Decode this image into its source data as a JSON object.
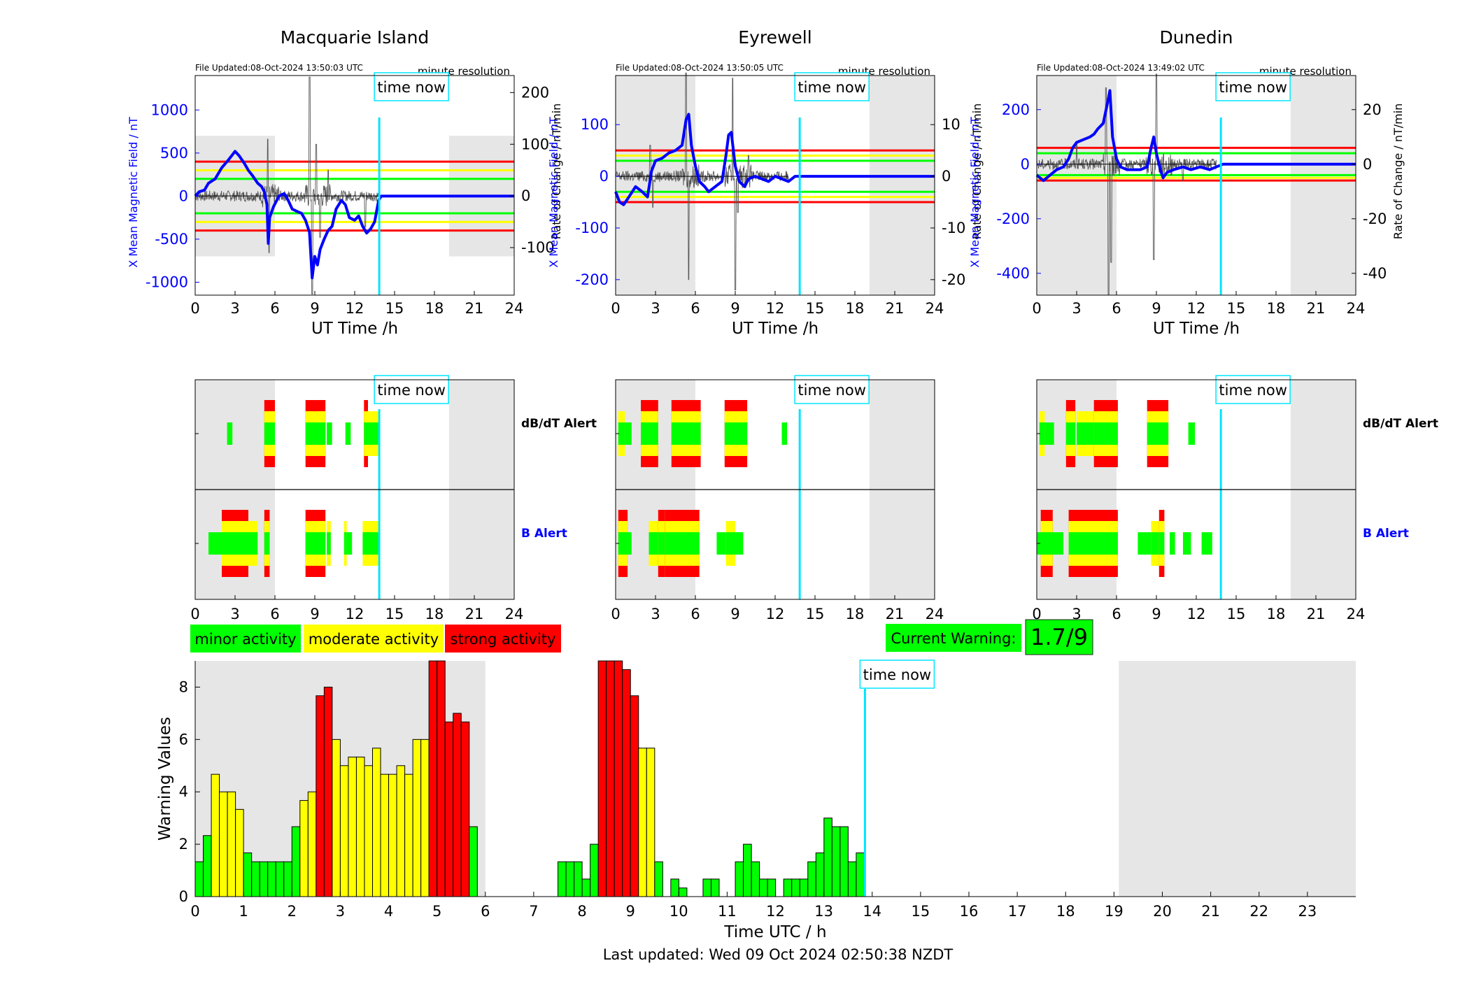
{
  "colors": {
    "minor": "#00ff00",
    "moderate": "#ffff00",
    "strong": "#ff0000",
    "night": "#e6e6e6",
    "field": "#0000ff",
    "roc": "#000000",
    "timenow": "#00e5ff"
  },
  "time_now_label": "time now",
  "time_now_h": 13.85,
  "top_axes": {
    "xlabel": "UT Time /h",
    "xticks": [
      0,
      3,
      6,
      9,
      12,
      15,
      18,
      21,
      24
    ],
    "xlim": [
      0,
      24
    ]
  },
  "stations": [
    {
      "name": "Macquarie Island",
      "file_updated": "File Updated:08-Oct-2024 13:50:03 UTC",
      "resolution": "minute resolution",
      "ylabel_left": "X Mean Magnetic Field / nT",
      "ylabel_right": "Rate of Change / nT/min",
      "ylim": [
        -1150,
        1400
      ],
      "yticks": [
        -1000,
        -500,
        0,
        500,
        1000
      ],
      "rlim": [
        -192,
        233
      ],
      "rticks": [
        -100,
        0,
        100,
        200
      ],
      "night": [
        [
          0,
          6
        ],
        [
          19.1,
          24
        ]
      ],
      "night_ylim": [
        -700,
        700
      ],
      "thresholds": [
        {
          "v": 400,
          "c": "strong"
        },
        {
          "v": 300,
          "c": "moderate"
        },
        {
          "v": 200,
          "c": "minor"
        },
        {
          "v": -200,
          "c": "minor"
        },
        {
          "v": -300,
          "c": "moderate"
        },
        {
          "v": -400,
          "c": "strong"
        }
      ],
      "field_data": [
        [
          0,
          0
        ],
        [
          0.3,
          50
        ],
        [
          0.7,
          70
        ],
        [
          1.0,
          150
        ],
        [
          1.5,
          200
        ],
        [
          2.0,
          330
        ],
        [
          2.5,
          420
        ],
        [
          2.8,
          480
        ],
        [
          3.0,
          520
        ],
        [
          3.3,
          470
        ],
        [
          3.7,
          380
        ],
        [
          4.0,
          300
        ],
        [
          4.3,
          240
        ],
        [
          4.7,
          150
        ],
        [
          5.0,
          110
        ],
        [
          5.2,
          50
        ],
        [
          5.4,
          -100
        ],
        [
          5.5,
          -550
        ],
        [
          5.6,
          -250
        ],
        [
          5.9,
          -120
        ],
        [
          6.3,
          0
        ],
        [
          6.7,
          30
        ],
        [
          7.0,
          -50
        ],
        [
          7.3,
          -150
        ],
        [
          7.7,
          -180
        ],
        [
          8.0,
          -200
        ],
        [
          8.3,
          -280
        ],
        [
          8.6,
          -420
        ],
        [
          8.8,
          -950
        ],
        [
          9.0,
          -700
        ],
        [
          9.2,
          -800
        ],
        [
          9.4,
          -620
        ],
        [
          9.7,
          -500
        ],
        [
          10.0,
          -400
        ],
        [
          10.3,
          -350
        ],
        [
          10.6,
          -150
        ],
        [
          11.0,
          -50
        ],
        [
          11.3,
          -100
        ],
        [
          11.6,
          -250
        ],
        [
          12.0,
          -280
        ],
        [
          12.3,
          -230
        ],
        [
          12.6,
          -350
        ],
        [
          12.9,
          -430
        ],
        [
          13.2,
          -380
        ],
        [
          13.5,
          -300
        ],
        [
          13.8,
          -50
        ],
        [
          14.0,
          0
        ],
        [
          24,
          0
        ]
      ],
      "roc_x0": 0,
      "roc_x1": 13.85,
      "roc_spikes": [
        [
          5.45,
          110
        ],
        [
          5.55,
          -110
        ],
        [
          8.6,
          230
        ],
        [
          8.8,
          -190
        ],
        [
          9.1,
          100
        ],
        [
          9.4,
          -80
        ],
        [
          10.0,
          50
        ],
        [
          12.8,
          -60
        ]
      ],
      "alert_db": [
        {
          "t0": 2.4,
          "t1": 2.8,
          "lvl": 1
        },
        {
          "t0": 5.2,
          "t1": 6.0,
          "lvl": 3
        },
        {
          "t0": 8.3,
          "t1": 9.8,
          "lvl": 3
        },
        {
          "t0": 9.9,
          "t1": 10.3,
          "lvl": 1
        },
        {
          "t0": 11.3,
          "t1": 11.7,
          "lvl": 1
        },
        {
          "t0": 12.7,
          "t1": 13.0,
          "lvl": 3
        },
        {
          "t0": 13.0,
          "t1": 13.85,
          "lvl": 2
        }
      ],
      "alert_b": [
        {
          "t0": 1.0,
          "t1": 2.0,
          "lvl": 1
        },
        {
          "t0": 2.0,
          "t1": 4.0,
          "lvl": 3
        },
        {
          "t0": 4.0,
          "t1": 4.7,
          "lvl": 2
        },
        {
          "t0": 5.2,
          "t1": 5.6,
          "lvl": 3
        },
        {
          "t0": 8.3,
          "t1": 9.8,
          "lvl": 3
        },
        {
          "t0": 9.9,
          "t1": 10.2,
          "lvl": 2
        },
        {
          "t0": 11.2,
          "t1": 11.4,
          "lvl": 2
        },
        {
          "t0": 11.4,
          "t1": 11.8,
          "lvl": 1
        },
        {
          "t0": 12.6,
          "t1": 13.85,
          "lvl": 2
        }
      ]
    },
    {
      "name": "Eyrewell",
      "file_updated": "File Updated:08-Oct-2024 13:50:05 UTC",
      "resolution": "minute resolution",
      "ylabel_left": "X Mean Magnetic Field / nT",
      "ylabel_right": "Rate of Change / nT/min",
      "ylim": [
        -230,
        195
      ],
      "yticks": [
        -200,
        -100,
        0,
        100
      ],
      "rlim": [
        -23,
        19.5
      ],
      "rticks": [
        -20,
        -10,
        0,
        10
      ],
      "night": [
        [
          0,
          6
        ],
        [
          19.1,
          24
        ]
      ],
      "night_ylim": [
        -230,
        195
      ],
      "thresholds": [
        {
          "v": 50,
          "c": "strong"
        },
        {
          "v": 40,
          "c": "moderate"
        },
        {
          "v": 30,
          "c": "minor"
        },
        {
          "v": -30,
          "c": "minor"
        },
        {
          "v": -40,
          "c": "moderate"
        },
        {
          "v": -50,
          "c": "strong"
        }
      ],
      "field_data": [
        [
          0,
          -30
        ],
        [
          0.3,
          -50
        ],
        [
          0.6,
          -55
        ],
        [
          1.0,
          -40
        ],
        [
          1.5,
          -20
        ],
        [
          2.0,
          -30
        ],
        [
          2.4,
          -40
        ],
        [
          2.7,
          10
        ],
        [
          3.0,
          30
        ],
        [
          3.5,
          35
        ],
        [
          4.0,
          45
        ],
        [
          4.5,
          50
        ],
        [
          5.0,
          60
        ],
        [
          5.3,
          110
        ],
        [
          5.5,
          120
        ],
        [
          5.7,
          60
        ],
        [
          6.0,
          20
        ],
        [
          6.3,
          -10
        ],
        [
          6.7,
          -20
        ],
        [
          7.0,
          -30
        ],
        [
          7.5,
          -20
        ],
        [
          8.0,
          -10
        ],
        [
          8.3,
          40
        ],
        [
          8.5,
          80
        ],
        [
          8.7,
          85
        ],
        [
          9.0,
          20
        ],
        [
          9.3,
          -10
        ],
        [
          9.7,
          -20
        ],
        [
          10.0,
          -5
        ],
        [
          10.5,
          0
        ],
        [
          11.0,
          -5
        ],
        [
          11.5,
          -10
        ],
        [
          12.0,
          0
        ],
        [
          12.5,
          -5
        ],
        [
          13.0,
          -10
        ],
        [
          13.5,
          0
        ],
        [
          24,
          0
        ]
      ],
      "roc_x0": 0,
      "roc_x1": 13.0,
      "roc_spikes": [
        [
          5.3,
          20
        ],
        [
          5.5,
          -20
        ],
        [
          8.8,
          19
        ],
        [
          9.0,
          -22
        ],
        [
          2.6,
          6
        ],
        [
          2.8,
          -6
        ],
        [
          9.2,
          -7
        ],
        [
          10.0,
          4
        ]
      ],
      "alert_db": [
        {
          "t0": 0.2,
          "t1": 0.7,
          "lvl": 2
        },
        {
          "t0": 0.7,
          "t1": 1.2,
          "lvl": 1
        },
        {
          "t0": 1.9,
          "t1": 3.2,
          "lvl": 3
        },
        {
          "t0": 4.2,
          "t1": 4.5,
          "lvl": 3
        },
        {
          "t0": 4.5,
          "t1": 6.4,
          "lvl": 3
        },
        {
          "t0": 8.2,
          "t1": 9.9,
          "lvl": 3
        },
        {
          "t0": 12.5,
          "t1": 12.9,
          "lvl": 1
        }
      ],
      "alert_b": [
        {
          "t0": 0.2,
          "t1": 0.9,
          "lvl": 3
        },
        {
          "t0": 0.9,
          "t1": 1.2,
          "lvl": 1
        },
        {
          "t0": 2.5,
          "t1": 3.2,
          "lvl": 2
        },
        {
          "t0": 3.2,
          "t1": 3.7,
          "lvl": 3
        },
        {
          "t0": 3.7,
          "t1": 6.3,
          "lvl": 3
        },
        {
          "t0": 7.6,
          "t1": 8.3,
          "lvl": 1
        },
        {
          "t0": 8.3,
          "t1": 9.0,
          "lvl": 2
        },
        {
          "t0": 9.0,
          "t1": 9.6,
          "lvl": 1
        }
      ]
    },
    {
      "name": "Dunedin",
      "file_updated": "File Updated:08-Oct-2024 13:49:02 UTC",
      "resolution": "minute resolution",
      "ylabel_left": "X Mean Magnetic Field / nT",
      "ylabel_right": "Rate of Change / nT/min",
      "ylim": [
        -480,
        325
      ],
      "yticks": [
        -400,
        -200,
        0,
        200
      ],
      "rlim": [
        -48,
        32.5
      ],
      "rticks": [
        -40,
        -20,
        0,
        20
      ],
      "night": [
        [
          0,
          6
        ],
        [
          19.1,
          24
        ]
      ],
      "night_ylim": [
        -480,
        325
      ],
      "thresholds": [
        {
          "v": 60,
          "c": "strong"
        },
        {
          "v": 40,
          "c": "minor"
        },
        {
          "v": -40,
          "c": "minor"
        },
        {
          "v": -50,
          "c": "moderate"
        },
        {
          "v": -60,
          "c": "strong"
        }
      ],
      "field_data": [
        [
          0,
          -40
        ],
        [
          0.5,
          -60
        ],
        [
          1.0,
          -40
        ],
        [
          1.5,
          -20
        ],
        [
          2.0,
          -10
        ],
        [
          2.4,
          20
        ],
        [
          2.7,
          60
        ],
        [
          3.0,
          80
        ],
        [
          3.5,
          90
        ],
        [
          4.0,
          100
        ],
        [
          4.3,
          110
        ],
        [
          4.6,
          130
        ],
        [
          5.0,
          150
        ],
        [
          5.3,
          220
        ],
        [
          5.5,
          270
        ],
        [
          5.7,
          100
        ],
        [
          6.0,
          20
        ],
        [
          6.3,
          -10
        ],
        [
          6.8,
          -20
        ],
        [
          7.3,
          -20
        ],
        [
          7.8,
          -20
        ],
        [
          8.3,
          -10
        ],
        [
          8.6,
          60
        ],
        [
          8.8,
          100
        ],
        [
          9.0,
          40
        ],
        [
          9.3,
          -20
        ],
        [
          9.5,
          -50
        ],
        [
          9.8,
          -30
        ],
        [
          10.3,
          -20
        ],
        [
          11.0,
          -10
        ],
        [
          11.6,
          -20
        ],
        [
          12.3,
          -10
        ],
        [
          13.0,
          -20
        ],
        [
          13.5,
          -10
        ],
        [
          14.0,
          0
        ],
        [
          24,
          0
        ]
      ],
      "roc_x0": 0,
      "roc_x1": 13.5,
      "roc_spikes": [
        [
          5.2,
          28
        ],
        [
          5.4,
          -48
        ],
        [
          5.6,
          -36
        ],
        [
          9.0,
          33
        ],
        [
          8.8,
          -35
        ],
        [
          3.0,
          8
        ],
        [
          11.0,
          -6
        ]
      ],
      "alert_db": [
        {
          "t0": 0.2,
          "t1": 0.6,
          "lvl": 2
        },
        {
          "t0": 0.6,
          "t1": 1.3,
          "lvl": 1
        },
        {
          "t0": 2.2,
          "t1": 2.9,
          "lvl": 3
        },
        {
          "t0": 3.0,
          "t1": 3.5,
          "lvl": 2
        },
        {
          "t0": 3.5,
          "t1": 4.3,
          "lvl": 2
        },
        {
          "t0": 4.3,
          "t1": 6.1,
          "lvl": 3
        },
        {
          "t0": 8.3,
          "t1": 9.9,
          "lvl": 3
        },
        {
          "t0": 11.4,
          "t1": 11.9,
          "lvl": 1
        }
      ],
      "alert_b": [
        {
          "t0": 0.3,
          "t1": 1.2,
          "lvl": 3
        },
        {
          "t0": 0,
          "t1": 2.0,
          "lvl": 1
        },
        {
          "t0": 2.4,
          "t1": 6.1,
          "lvl": 3
        },
        {
          "t0": 7.6,
          "t1": 8.6,
          "lvl": 1
        },
        {
          "t0": 8.6,
          "t1": 9.2,
          "lvl": 2
        },
        {
          "t0": 9.2,
          "t1": 9.6,
          "lvl": 3
        },
        {
          "t0": 10.0,
          "t1": 10.4,
          "lvl": 1
        },
        {
          "t0": 11.0,
          "t1": 11.6,
          "lvl": 1
        },
        {
          "t0": 12.4,
          "t1": 13.2,
          "lvl": 1
        }
      ]
    }
  ],
  "alert_labels": {
    "dbdt": "dB/dT Alert",
    "b": "B Alert"
  },
  "legend": {
    "minor": "minor activity",
    "moderate": "moderate activity",
    "strong": "strong activity"
  },
  "current_warning": {
    "label": "Current Warning:",
    "value": "1.7/9"
  },
  "chart_data": {
    "type": "bar",
    "xlabel": "Time UTC / h",
    "ylabel": "Warning Values",
    "xlim": [
      0,
      24
    ],
    "ylim": [
      0,
      9
    ],
    "xticks": [
      0,
      1,
      2,
      3,
      4,
      5,
      6,
      7,
      8,
      9,
      10,
      11,
      12,
      13,
      14,
      15,
      16,
      17,
      18,
      19,
      20,
      21,
      22,
      23
    ],
    "yticks": [
      0,
      2,
      4,
      6,
      8
    ],
    "bin_width_h": 0.1667,
    "night": [
      [
        0,
        6
      ],
      [
        19.1,
        24
      ]
    ],
    "values": [
      1.33,
      2.33,
      4.67,
      4.0,
      4.0,
      3.33,
      1.67,
      1.33,
      1.33,
      1.33,
      1.33,
      1.33,
      2.67,
      3.67,
      4.0,
      7.67,
      8.0,
      6.0,
      5.0,
      5.33,
      5.33,
      5.0,
      5.67,
      4.67,
      4.67,
      5.0,
      4.67,
      6.0,
      6.0,
      9.0,
      9.0,
      6.67,
      7.0,
      6.67,
      2.67,
      0,
      0,
      0,
      0,
      0,
      0,
      0,
      0,
      0,
      0,
      1.33,
      1.33,
      1.33,
      0.67,
      2.0,
      9.0,
      9.0,
      9.0,
      8.67,
      7.67,
      5.67,
      5.67,
      1.33,
      0,
      0.67,
      0.33,
      0,
      0,
      0.67,
      0.67,
      0,
      0,
      1.33,
      2.0,
      1.33,
      0.67,
      0.67,
      0,
      0.67,
      0.67,
      0.67,
      1.33,
      1.67,
      3.0,
      2.67,
      2.67,
      1.33,
      1.67,
      0
    ],
    "levels": [
      1,
      1,
      2,
      2,
      2,
      2,
      1,
      1,
      1,
      1,
      1,
      1,
      1,
      2,
      2,
      3,
      3,
      2,
      2,
      2,
      2,
      2,
      2,
      2,
      2,
      2,
      2,
      2,
      2,
      3,
      3,
      3,
      3,
      3,
      1,
      0,
      0,
      0,
      0,
      0,
      0,
      0,
      0,
      0,
      0,
      1,
      1,
      1,
      1,
      1,
      3,
      3,
      3,
      3,
      3,
      2,
      2,
      1,
      0,
      1,
      1,
      0,
      0,
      1,
      1,
      0,
      0,
      1,
      1,
      1,
      1,
      1,
      0,
      1,
      1,
      1,
      1,
      1,
      1,
      1,
      1,
      1,
      1,
      0
    ]
  },
  "last_updated": "Last updated: Wed 09 Oct 2024 02:50:38 NZDT"
}
